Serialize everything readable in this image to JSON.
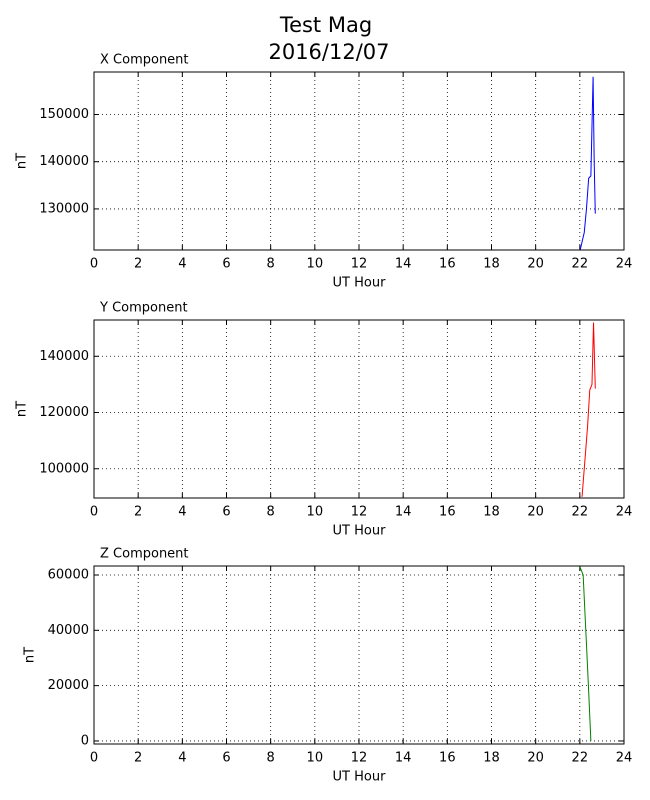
{
  "title": [
    "Test Mag",
    "2016/12/07"
  ],
  "chart_data": [
    {
      "type": "line",
      "title": "X Component",
      "x_label": "UT Hour",
      "y_label": "nT",
      "xlim": [
        0,
        24
      ],
      "xticks": [
        0,
        2,
        4,
        6,
        8,
        10,
        12,
        14,
        16,
        18,
        20,
        22,
        24
      ],
      "ylim": [
        121300,
        159000
      ],
      "yticks": [
        130000,
        140000,
        150000
      ],
      "grid": true,
      "series": [
        {
          "name": "X",
          "color": "#0000ff",
          "x": [
            22.0,
            22.2,
            22.3,
            22.4,
            22.5,
            22.6,
            22.65,
            22.7
          ],
          "values": [
            121000,
            125000,
            130000,
            136500,
            137000,
            158000,
            140000,
            129000
          ]
        }
      ]
    },
    {
      "type": "line",
      "title": "Y Component",
      "x_label": "UT Hour",
      "y_label": "nT",
      "xlim": [
        0,
        24
      ],
      "xticks": [
        0,
        2,
        4,
        6,
        8,
        10,
        12,
        14,
        16,
        18,
        20,
        22,
        24
      ],
      "ylim": [
        89600,
        152900
      ],
      "yticks": [
        100000,
        120000,
        140000
      ],
      "grid": true,
      "series": [
        {
          "name": "Y",
          "color": "#ff0000",
          "x": [
            22.1,
            22.25,
            22.35,
            22.45,
            22.55,
            22.62,
            22.7
          ],
          "values": [
            90000,
            105000,
            115000,
            128000,
            130000,
            152000,
            128500
          ]
        }
      ]
    },
    {
      "type": "line",
      "title": "Z Component",
      "x_label": "UT Hour",
      "y_label": "nT",
      "xlim": [
        0,
        24
      ],
      "xticks": [
        0,
        2,
        4,
        6,
        8,
        10,
        12,
        14,
        16,
        18,
        20,
        22,
        24
      ],
      "ylim": [
        -1100,
        63250
      ],
      "yticks": [
        0,
        20000,
        40000,
        60000
      ],
      "grid": true,
      "series": [
        {
          "name": "Z",
          "color": "#008000",
          "x": [
            22.0,
            22.15,
            22.3,
            22.4,
            22.5
          ],
          "values": [
            63000,
            60000,
            35000,
            18000,
            0
          ]
        }
      ]
    }
  ]
}
